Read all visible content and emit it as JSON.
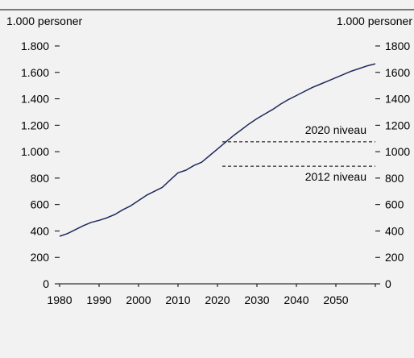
{
  "chart_data": {
    "type": "line",
    "title": "",
    "left_unit_label": "1.000 personer",
    "right_unit_label": "1.000 personer",
    "ylim": [
      0,
      1800
    ],
    "left_yticks": [
      {
        "value": 0,
        "label": "0"
      },
      {
        "value": 200,
        "label": "200"
      },
      {
        "value": 400,
        "label": "400"
      },
      {
        "value": 600,
        "label": "600"
      },
      {
        "value": 800,
        "label": "800"
      },
      {
        "value": 1000,
        "label": "1.000"
      },
      {
        "value": 1200,
        "label": "1.200"
      },
      {
        "value": 1400,
        "label": "1.400"
      },
      {
        "value": 1600,
        "label": "1.600"
      },
      {
        "value": 1800,
        "label": "1.800"
      }
    ],
    "right_yticks": [
      {
        "value": 0,
        "label": "0"
      },
      {
        "value": 200,
        "label": "200"
      },
      {
        "value": 400,
        "label": "400"
      },
      {
        "value": 600,
        "label": "600"
      },
      {
        "value": 800,
        "label": "800"
      },
      {
        "value": 1000,
        "label": "1000"
      },
      {
        "value": 1200,
        "label": "1200"
      },
      {
        "value": 1400,
        "label": "1400"
      },
      {
        "value": 1600,
        "label": "1600"
      },
      {
        "value": 1800,
        "label": "1800"
      }
    ],
    "xlim": [
      1980,
      2060
    ],
    "xticks": [
      {
        "value": 1980,
        "label": "1980"
      },
      {
        "value": 1990,
        "label": "1990"
      },
      {
        "value": 2000,
        "label": "2000"
      },
      {
        "value": 2010,
        "label": "2010"
      },
      {
        "value": 2020,
        "label": "2020"
      },
      {
        "value": 2030,
        "label": "2030"
      },
      {
        "value": 2040,
        "label": "2040"
      },
      {
        "value": 2050,
        "label": "2050"
      }
    ],
    "grid": false,
    "line_color": "#1f2a5c",
    "series": [
      {
        "x": [
          1980,
          1982,
          1984,
          1986,
          1988,
          1990,
          1992,
          1994,
          1996,
          1998,
          2000,
          2002,
          2004,
          2006,
          2008,
          2010,
          2012,
          2014,
          2016,
          2018,
          2020,
          2022,
          2024,
          2026,
          2028,
          2030,
          2032,
          2034,
          2036,
          2038,
          2040,
          2042,
          2044,
          2046,
          2048,
          2050,
          2052,
          2054,
          2056,
          2058,
          2060
        ],
        "values": [
          360,
          380,
          410,
          440,
          465,
          480,
          500,
          525,
          560,
          590,
          630,
          670,
          700,
          730,
          785,
          840,
          860,
          895,
          920,
          970,
          1020,
          1070,
          1120,
          1165,
          1210,
          1250,
          1285,
          1320,
          1360,
          1395,
          1425,
          1455,
          1485,
          1510,
          1535,
          1560,
          1585,
          1610,
          1630,
          1650,
          1665
        ]
      }
    ],
    "reference_lines": [
      {
        "label": "2020 niveau",
        "value": 1075,
        "x_start": 2020,
        "x_end": 2060,
        "style": "dashed"
      },
      {
        "label": "2012 niveau",
        "value": 890,
        "x_start": 2020,
        "x_end": 2060,
        "style": "dashed"
      }
    ]
  }
}
